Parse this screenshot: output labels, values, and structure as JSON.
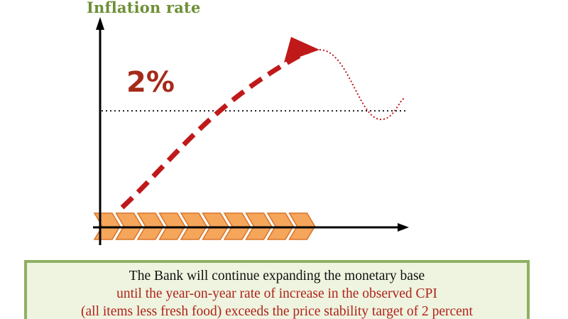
{
  "y_axis_title": "Inflation rate",
  "target_label": "2%",
  "note": {
    "line1": "The Bank will continue expanding the monetary base",
    "line2": "until the year-on-year rate of increase in the observed CPI",
    "line3": "(all items less fresh food) exceeds the price stability target of 2 percent"
  },
  "colors": {
    "title_green": "#6e8f37",
    "target_red": "#a52a1a",
    "curve_red": "#c0191a",
    "axis": "#000000",
    "chevron_fill": "#f5a65b",
    "chevron_stroke": "#d9742a",
    "note_border": "#8fb062",
    "note_background": "#eef4df",
    "note_black_text": "#111111",
    "note_red_text": "#b0221b"
  },
  "chevron_count": 10
}
